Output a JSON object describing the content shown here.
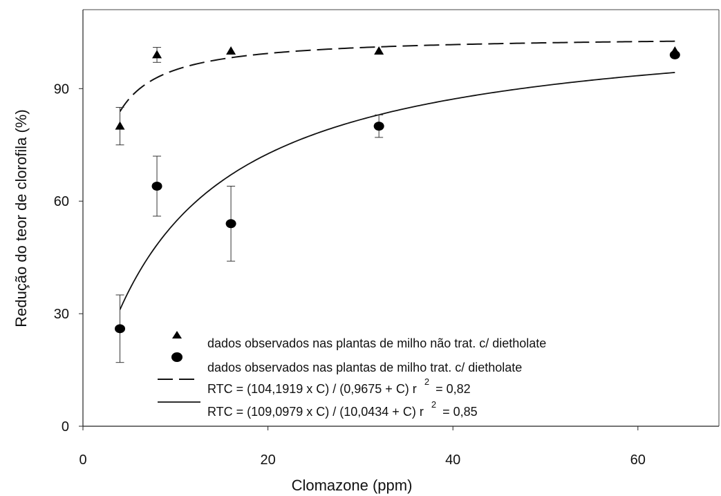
{
  "chart_data": {
    "type": "scatter",
    "title": "",
    "xlabel": "Clomazone (ppm)",
    "ylabel": "Redução do teor de clorofila (%)",
    "xlim": [
      0,
      68
    ],
    "ylim": [
      0,
      110
    ],
    "xticks": [
      0,
      20,
      40,
      60
    ],
    "yticks": [
      0,
      30,
      60,
      90
    ],
    "grid": false,
    "legend_position": "bottom-center",
    "series": [
      {
        "name": "dados observados nas plantas de milho não trat. c/ dietholate",
        "kind": "points",
        "marker": "triangle",
        "x": [
          4,
          8,
          16,
          32,
          64
        ],
        "y": [
          80,
          99,
          100,
          100,
          100
        ],
        "err": [
          5,
          2,
          0,
          0,
          0
        ]
      },
      {
        "name": "dados observados nas plantas de milho trat. c/ dietholate",
        "kind": "points",
        "marker": "circle",
        "x": [
          4,
          8,
          16,
          32,
          64
        ],
        "y": [
          26,
          64,
          54,
          80,
          99
        ],
        "err": [
          9,
          8,
          10,
          3,
          0
        ]
      },
      {
        "name": "RTC = (104,1919 x C) / (0,9675 + C)   r² = 0,82",
        "label_main": "RTC = (104,1919 x C) / (0,9675 + C)   r",
        "label_exp": "2",
        "label_tail": "= 0,82",
        "kind": "line",
        "style": "dashed",
        "a": 104.1919,
        "b": 0.9675,
        "x_range": [
          4,
          64
        ]
      },
      {
        "name": "RTC = (109,0979 x C) / (10,0434 + C)   r² = 0,85",
        "label_main": "RTC = (109,0979 x C) / (10,0434 + C)   r",
        "label_exp": "2",
        "label_tail": "= 0,85",
        "kind": "line",
        "style": "solid",
        "a": 109.0979,
        "b": 10.0434,
        "x_range": [
          4,
          64
        ]
      }
    ]
  }
}
